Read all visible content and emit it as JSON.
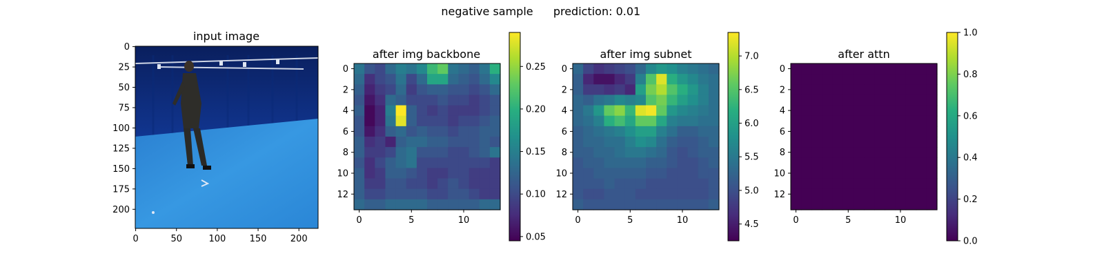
{
  "figure": {
    "suptitle_left": "negative sample",
    "suptitle_right": "prediction: 0.01"
  },
  "chart_data": [
    {
      "type": "image",
      "title": "input image",
      "image": "photo of a person standing in a blue-curtained studio with a blue floor",
      "xticks": [
        "0",
        "50",
        "100",
        "150",
        "200"
      ],
      "yticks": [
        "0",
        "25",
        "50",
        "75",
        "100",
        "125",
        "150",
        "175",
        "200"
      ],
      "xlim": [
        0,
        224
      ],
      "ylim": [
        0,
        224
      ],
      "colors": {
        "wall": "#0d2a7a",
        "floor": "#2f8fd8",
        "person": "#2b2a26"
      }
    },
    {
      "type": "heatmap",
      "title": "after img backbone",
      "colormap": "viridis",
      "xticks": [
        "0",
        "5",
        "10"
      ],
      "yticks": [
        "0",
        "2",
        "4",
        "6",
        "8",
        "10",
        "12"
      ],
      "colorbar": {
        "min": 0.045,
        "max": 0.29,
        "ticks": [
          "0.05",
          "0.10",
          "0.15",
          "0.20",
          "0.25"
        ]
      },
      "values": [
        [
          0.14,
          0.11,
          0.1,
          0.13,
          0.15,
          0.14,
          0.16,
          0.21,
          0.23,
          0.14,
          0.13,
          0.12,
          0.14,
          0.2
        ],
        [
          0.13,
          0.08,
          0.1,
          0.11,
          0.14,
          0.1,
          0.13,
          0.19,
          0.19,
          0.13,
          0.12,
          0.11,
          0.13,
          0.16
        ],
        [
          0.12,
          0.07,
          0.09,
          0.1,
          0.13,
          0.09,
          0.11,
          0.12,
          0.12,
          0.11,
          0.11,
          0.1,
          0.11,
          0.13
        ],
        [
          0.11,
          0.06,
          0.08,
          0.13,
          0.12,
          0.1,
          0.1,
          0.1,
          0.11,
          0.1,
          0.1,
          0.09,
          0.1,
          0.11
        ],
        [
          0.12,
          0.05,
          0.07,
          0.15,
          0.29,
          0.12,
          0.1,
          0.09,
          0.1,
          0.09,
          0.09,
          0.09,
          0.1,
          0.11
        ],
        [
          0.11,
          0.05,
          0.07,
          0.14,
          0.28,
          0.12,
          0.1,
          0.1,
          0.1,
          0.09,
          0.1,
          0.1,
          0.11,
          0.12
        ],
        [
          0.11,
          0.06,
          0.08,
          0.12,
          0.13,
          0.11,
          0.12,
          0.11,
          0.11,
          0.1,
          0.11,
          0.11,
          0.12,
          0.12
        ],
        [
          0.12,
          0.08,
          0.09,
          0.07,
          0.12,
          0.13,
          0.13,
          0.12,
          0.12,
          0.11,
          0.11,
          0.11,
          0.12,
          0.11
        ],
        [
          0.12,
          0.09,
          0.09,
          0.1,
          0.13,
          0.14,
          0.11,
          0.11,
          0.11,
          0.1,
          0.1,
          0.11,
          0.12,
          0.14
        ],
        [
          0.11,
          0.08,
          0.1,
          0.12,
          0.13,
          0.14,
          0.1,
          0.1,
          0.1,
          0.1,
          0.1,
          0.1,
          0.1,
          0.09
        ],
        [
          0.12,
          0.08,
          0.09,
          0.12,
          0.12,
          0.11,
          0.1,
          0.09,
          0.09,
          0.1,
          0.1,
          0.09,
          0.09,
          0.09
        ],
        [
          0.12,
          0.09,
          0.09,
          0.11,
          0.11,
          0.1,
          0.1,
          0.09,
          0.1,
          0.11,
          0.1,
          0.09,
          0.09,
          0.09
        ],
        [
          0.12,
          0.1,
          0.1,
          0.11,
          0.11,
          0.11,
          0.11,
          0.1,
          0.1,
          0.11,
          0.11,
          0.1,
          0.09,
          0.09
        ],
        [
          0.13,
          0.12,
          0.12,
          0.13,
          0.13,
          0.13,
          0.13,
          0.12,
          0.12,
          0.12,
          0.12,
          0.12,
          0.13,
          0.13
        ]
      ]
    },
    {
      "type": "heatmap",
      "title": "after img subnet",
      "colormap": "viridis",
      "xticks": [
        "0",
        "5",
        "10"
      ],
      "yticks": [
        "0",
        "2",
        "4",
        "6",
        "8",
        "10",
        "12"
      ],
      "colorbar": {
        "min": 4.25,
        "max": 7.35,
        "ticks": [
          "4.5",
          "5.0",
          "5.5",
          "6.0",
          "6.5",
          "7.0"
        ]
      },
      "values": [
        [
          5.3,
          4.9,
          4.7,
          4.8,
          4.9,
          5.0,
          5.3,
          5.7,
          5.9,
          5.8,
          5.6,
          5.5,
          5.4,
          5.3
        ],
        [
          5.2,
          4.6,
          4.4,
          4.4,
          4.6,
          4.8,
          5.6,
          6.5,
          7.2,
          6.2,
          5.9,
          5.7,
          5.5,
          5.4
        ],
        [
          5.2,
          4.8,
          4.8,
          4.7,
          4.8,
          4.6,
          6.0,
          6.7,
          7.0,
          6.5,
          6.2,
          5.9,
          5.6,
          5.4
        ],
        [
          5.3,
          5.2,
          5.4,
          5.5,
          5.7,
          5.6,
          5.7,
          6.5,
          6.7,
          6.3,
          6.0,
          5.8,
          5.6,
          5.4
        ],
        [
          5.3,
          5.5,
          5.9,
          6.6,
          6.8,
          6.3,
          7.2,
          7.3,
          6.6,
          5.9,
          5.7,
          5.6,
          5.5,
          5.4
        ],
        [
          5.3,
          5.4,
          5.6,
          6.2,
          6.4,
          6.1,
          6.6,
          6.6,
          6.1,
          5.6,
          5.5,
          5.5,
          5.4,
          5.4
        ],
        [
          5.2,
          5.3,
          5.4,
          5.5,
          5.6,
          5.8,
          6.0,
          6.0,
          5.6,
          5.4,
          5.2,
          5.2,
          5.3,
          5.3
        ],
        [
          5.2,
          5.3,
          5.3,
          5.4,
          5.4,
          5.6,
          5.8,
          5.7,
          5.4,
          5.2,
          5.1,
          5.1,
          5.2,
          5.3
        ],
        [
          5.2,
          5.2,
          5.3,
          5.3,
          5.4,
          5.5,
          5.5,
          5.4,
          5.3,
          5.1,
          5.0,
          5.1,
          5.2,
          5.2
        ],
        [
          5.1,
          5.2,
          5.2,
          5.3,
          5.3,
          5.3,
          5.3,
          5.2,
          5.2,
          5.1,
          5.0,
          5.0,
          5.1,
          5.2
        ],
        [
          5.1,
          5.1,
          5.2,
          5.2,
          5.2,
          5.2,
          5.2,
          5.1,
          5.1,
          5.0,
          5.0,
          5.0,
          5.1,
          5.1
        ],
        [
          5.1,
          5.1,
          5.1,
          5.2,
          5.1,
          5.1,
          5.1,
          5.0,
          5.0,
          5.0,
          5.0,
          5.0,
          5.0,
          5.1
        ],
        [
          5.1,
          5.0,
          5.0,
          5.1,
          5.1,
          5.1,
          5.0,
          5.0,
          5.0,
          5.0,
          5.0,
          5.0,
          5.0,
          5.1
        ],
        [
          5.2,
          5.1,
          5.1,
          5.1,
          5.1,
          5.1,
          5.1,
          5.1,
          5.1,
          5.1,
          5.1,
          5.1,
          5.1,
          5.2
        ]
      ]
    },
    {
      "type": "heatmap",
      "title": "after attn",
      "colormap": "viridis",
      "xticks": [
        "0",
        "5",
        "10"
      ],
      "yticks": [
        "0",
        "2",
        "4",
        "6",
        "8",
        "10",
        "12"
      ],
      "colorbar": {
        "min": 0.0,
        "max": 1.0,
        "ticks": [
          "0.0",
          "0.2",
          "0.4",
          "0.6",
          "0.8",
          "1.0"
        ]
      },
      "values": [
        [
          0,
          0,
          0,
          0,
          0,
          0,
          0,
          0,
          0,
          0,
          0,
          0,
          0,
          0
        ],
        [
          0,
          0,
          0,
          0,
          0,
          0,
          0,
          0,
          0,
          0,
          0,
          0,
          0,
          0
        ],
        [
          0,
          0,
          0,
          0,
          0,
          0,
          0,
          0,
          0,
          0,
          0,
          0,
          0,
          0
        ],
        [
          0,
          0,
          0,
          0,
          0,
          0,
          0,
          0,
          0,
          0,
          0,
          0,
          0,
          0
        ],
        [
          0,
          0,
          0,
          0,
          0,
          0,
          0,
          0,
          0,
          0,
          0,
          0,
          0,
          0
        ],
        [
          0,
          0,
          0,
          0,
          0,
          0,
          0,
          0,
          0,
          0,
          0,
          0,
          0,
          0
        ],
        [
          0,
          0,
          0,
          0,
          0,
          0,
          0,
          0,
          0,
          0,
          0,
          0,
          0,
          0
        ],
        [
          0,
          0,
          0,
          0,
          0,
          0,
          0,
          0,
          0,
          0,
          0,
          0,
          0,
          0
        ],
        [
          0,
          0,
          0,
          0,
          0,
          0,
          0,
          0,
          0,
          0,
          0,
          0,
          0,
          0
        ],
        [
          0,
          0,
          0,
          0,
          0,
          0,
          0,
          0,
          0,
          0,
          0,
          0,
          0,
          0
        ],
        [
          0,
          0,
          0,
          0,
          0,
          0,
          0,
          0,
          0,
          0,
          0,
          0,
          0,
          0
        ],
        [
          0,
          0,
          0,
          0,
          0,
          0,
          0,
          0,
          0,
          0,
          0,
          0,
          0,
          0
        ],
        [
          0,
          0,
          0,
          0,
          0,
          0,
          0,
          0,
          0,
          0,
          0,
          0,
          0,
          0
        ],
        [
          0,
          0,
          0,
          0,
          0,
          0,
          0,
          0,
          0,
          0,
          0,
          0,
          0,
          0
        ]
      ]
    }
  ]
}
